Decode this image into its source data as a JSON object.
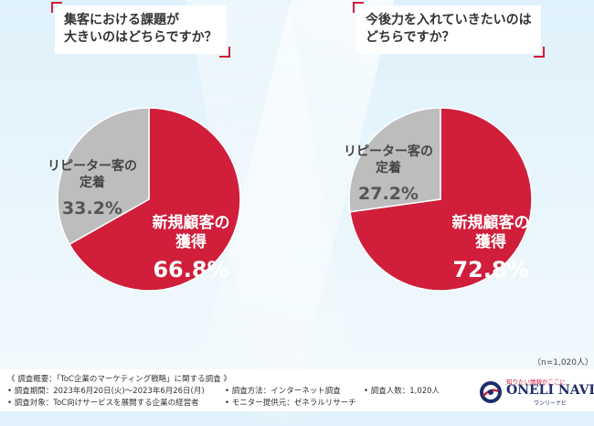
{
  "colors": {
    "accent": "#d01e3b",
    "grey": "#bdbdbd",
    "background": "#e6f4fb"
  },
  "chart_data": [
    {
      "type": "pie",
      "title": [
        "集客における課題が",
        "大きいのはどちらですか？"
      ],
      "slices": [
        {
          "label": [
            "新規顧客の",
            "獲得"
          ],
          "value": 66.8,
          "value_text": "66.8%",
          "color": "#d01e3b"
        },
        {
          "label": [
            "リピーター客の",
            "定着"
          ],
          "value": 33.2,
          "value_text": "33.2%",
          "color": "#bdbdbd"
        }
      ]
    },
    {
      "type": "pie",
      "title": [
        "今後力を入れていきたいのは",
        "どちらですか？"
      ],
      "slices": [
        {
          "label": [
            "新規顧客の",
            "獲得"
          ],
          "value": 72.8,
          "value_text": "72.8%",
          "color": "#d01e3b"
        },
        {
          "label": [
            "リピーター客の",
            "定着"
          ],
          "value": 27.2,
          "value_text": "27.2%",
          "color": "#bdbdbd"
        }
      ]
    }
  ],
  "sample_size": "（n=1,020人）",
  "footnotes": {
    "overview": "《 調査概要：「ToC企業のマーケティング戦略」に関する調査 》",
    "period": "• 調査期間：2023年6月20日(火)～2023年6月26日(月)",
    "target": "• 調査対象：ToC向けサービスを展開する企業の経営者",
    "method": "• 調査方法：インターネット調査",
    "provider": "• モニター提供元：ゼネラルリサーチ",
    "count": "• 調査人数：1,020人"
  },
  "logo": {
    "tagline": "知りたい情報がここに",
    "brand": "ONELI NAVI",
    "kana": "ワンリーナビ"
  }
}
